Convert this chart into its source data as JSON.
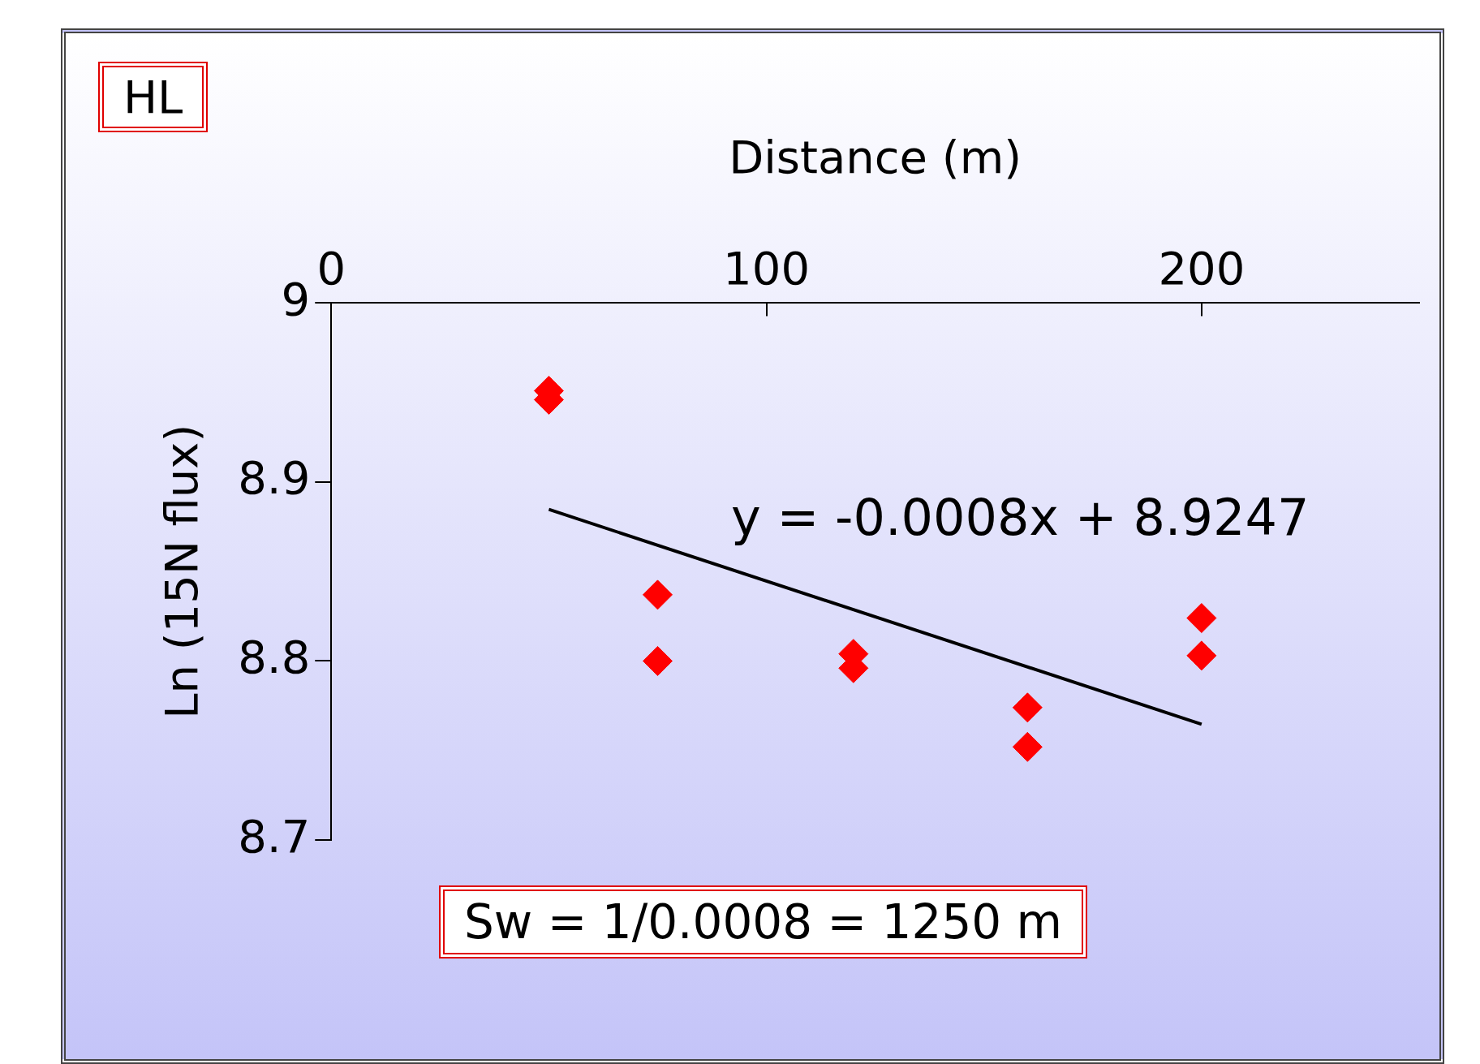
{
  "chart_data": {
    "type": "scatter",
    "xlabel": "Distance (m)",
    "ylabel": "Ln (15N flux)",
    "xlim": [
      0,
      250
    ],
    "xticks": [
      0,
      100,
      200
    ],
    "ylim": [
      8.7,
      9
    ],
    "yticks": [
      8.7,
      8.8,
      8.9,
      9
    ],
    "grid": false,
    "legend": false,
    "marker": "diamond",
    "series": [
      {
        "type": "scatter",
        "color": "#ff0000",
        "x": [
          50,
          50,
          75,
          75,
          120,
          120,
          160,
          160,
          200,
          200
        ],
        "values": [
          8.951,
          8.946,
          8.837,
          8.8,
          8.804,
          8.796,
          8.774,
          8.752,
          8.824,
          8.803
        ]
      },
      {
        "type": "line",
        "color": "#000000",
        "marker": "none",
        "x": [
          50,
          200
        ],
        "values": [
          8.8847,
          8.7647
        ]
      }
    ],
    "annotations": [
      "HL",
      "y = -0.0008x + 8.9247",
      "Sw = 1/0.0008 = 1250 m"
    ]
  }
}
